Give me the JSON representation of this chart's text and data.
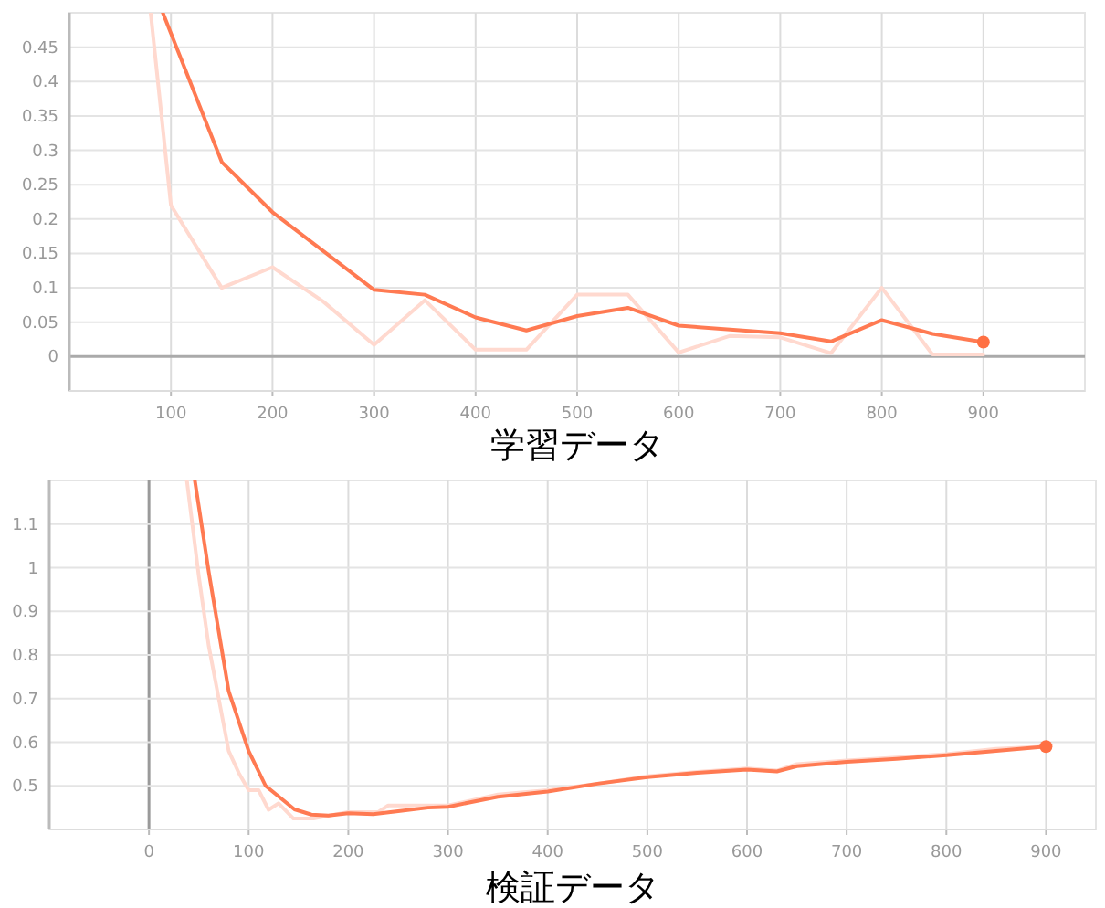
{
  "chart_data": [
    {
      "type": "line",
      "xlabel": "学習データ",
      "xlim": [
        0,
        1000
      ],
      "ylim": [
        -0.05,
        0.5
      ],
      "xticks": [
        100,
        200,
        300,
        400,
        500,
        600,
        700,
        800,
        900
      ],
      "yticks": [
        0,
        0.05,
        0.1,
        0.15,
        0.2,
        0.25,
        0.3,
        0.35,
        0.4,
        0.45
      ],
      "grid": true,
      "series": [
        {
          "color": "#ffd9cf",
          "x": [
            80,
            100,
            150,
            200,
            250,
            300,
            350,
            400,
            450,
            500,
            550,
            600,
            650,
            700,
            750,
            800,
            850,
            900
          ],
          "values": [
            0.5,
            0.22,
            0.1,
            0.13,
            0.08,
            0.017,
            0.082,
            0.01,
            0.01,
            0.09,
            0.09,
            0.006,
            0.03,
            0.028,
            0.005,
            0.1,
            0.003,
            0.003
          ]
        },
        {
          "color": "#ff7a52",
          "x": [
            92,
            100,
            150,
            200,
            300,
            350,
            400,
            450,
            500,
            550,
            600,
            700,
            750,
            800,
            850,
            900
          ],
          "values": [
            0.5,
            0.47,
            0.283,
            0.21,
            0.097,
            0.09,
            0.057,
            0.038,
            0.059,
            0.071,
            0.045,
            0.034,
            0.022,
            0.053,
            0.033,
            0.021
          ]
        },
        {
          "type": "scatter",
          "color": "#ff7043",
          "x": [
            900
          ],
          "values": [
            0.021
          ]
        }
      ]
    },
    {
      "type": "line",
      "xlabel": "検証データ",
      "xlim": [
        -100,
        950
      ],
      "ylim": [
        0.4,
        1.2
      ],
      "xticks": [
        0,
        100,
        200,
        300,
        400,
        500,
        600,
        700,
        800,
        900
      ],
      "yticks": [
        0.5,
        0.6,
        0.7,
        0.8,
        0.9,
        1,
        1.1
      ],
      "grid": true,
      "series": [
        {
          "color": "#ffd9cf",
          "x": [
            38,
            50,
            60,
            70,
            80,
            90,
            100,
            110,
            120,
            130,
            145,
            165,
            200,
            230,
            240,
            300,
            350,
            400,
            450,
            500,
            550,
            600,
            630,
            650,
            700,
            750,
            800,
            850,
            900
          ],
          "values": [
            1.2,
            0.98,
            0.82,
            0.7,
            0.58,
            0.53,
            0.49,
            0.49,
            0.445,
            0.46,
            0.425,
            0.425,
            0.44,
            0.44,
            0.455,
            0.455,
            0.48,
            0.49,
            0.505,
            0.522,
            0.532,
            0.54,
            0.535,
            0.55,
            0.558,
            0.565,
            0.573,
            0.585,
            0.59
          ]
        },
        {
          "color": "#ff7a52",
          "x": [
            46,
            60,
            80,
            100,
            117,
            146,
            163,
            180,
            200,
            225,
            250,
            280,
            300,
            350,
            400,
            450,
            500,
            550,
            600,
            630,
            650,
            700,
            750,
            800,
            850,
            900
          ],
          "values": [
            1.2,
            0.99,
            0.717,
            0.58,
            0.5,
            0.446,
            0.434,
            0.432,
            0.437,
            0.435,
            0.442,
            0.45,
            0.452,
            0.475,
            0.487,
            0.505,
            0.52,
            0.53,
            0.537,
            0.533,
            0.545,
            0.555,
            0.562,
            0.57,
            0.58,
            0.59
          ]
        },
        {
          "type": "scatter",
          "color": "#ff7043",
          "x": [
            900
          ],
          "values": [
            0.59
          ]
        }
      ]
    }
  ]
}
